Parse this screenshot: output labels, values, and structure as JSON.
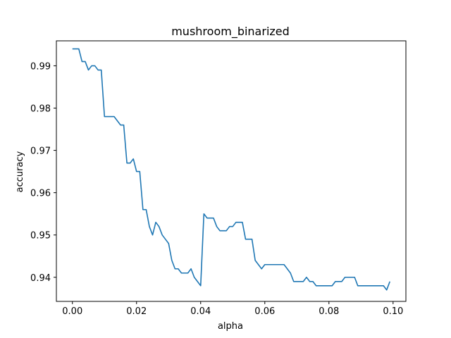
{
  "chart_data": {
    "type": "line",
    "title": "mushroom_binarized",
    "xlabel": "alpha",
    "ylabel": "accuracy",
    "xlim": [
      -0.005,
      0.104
    ],
    "ylim": [
      0.9343,
      0.9959
    ],
    "xticks": [
      0.0,
      0.02,
      0.04,
      0.06,
      0.08,
      0.1
    ],
    "xtick_labels": [
      "0.00",
      "0.02",
      "0.04",
      "0.06",
      "0.08",
      "0.10"
    ],
    "yticks": [
      0.94,
      0.95,
      0.96,
      0.97,
      0.98,
      0.99
    ],
    "ytick_labels": [
      "0.94",
      "0.95",
      "0.96",
      "0.97",
      "0.98",
      "0.99"
    ],
    "grid": false,
    "series": [
      {
        "color": "#1f77b4",
        "x": [
          0.0,
          0.001,
          0.002,
          0.003,
          0.004,
          0.005,
          0.006,
          0.007,
          0.008,
          0.009,
          0.01,
          0.011,
          0.012,
          0.013,
          0.014,
          0.015,
          0.016,
          0.017,
          0.018,
          0.019,
          0.02,
          0.021,
          0.022,
          0.023,
          0.024,
          0.025,
          0.026,
          0.027,
          0.028,
          0.029,
          0.03,
          0.031,
          0.032,
          0.033,
          0.034,
          0.035,
          0.036,
          0.037,
          0.038,
          0.039,
          0.04,
          0.041,
          0.042,
          0.043,
          0.044,
          0.045,
          0.046,
          0.047,
          0.048,
          0.049,
          0.05,
          0.051,
          0.052,
          0.053,
          0.054,
          0.055,
          0.056,
          0.057,
          0.058,
          0.059,
          0.06,
          0.061,
          0.062,
          0.063,
          0.064,
          0.065,
          0.066,
          0.067,
          0.068,
          0.069,
          0.07,
          0.071,
          0.072,
          0.073,
          0.074,
          0.075,
          0.076,
          0.077,
          0.078,
          0.079,
          0.08,
          0.081,
          0.082,
          0.083,
          0.084,
          0.085,
          0.086,
          0.087,
          0.088,
          0.089,
          0.09,
          0.091,
          0.092,
          0.093,
          0.094,
          0.095,
          0.096,
          0.097,
          0.098,
          0.099
        ],
        "values": [
          0.994,
          0.994,
          0.994,
          0.991,
          0.991,
          0.989,
          0.99,
          0.99,
          0.989,
          0.989,
          0.978,
          0.978,
          0.978,
          0.978,
          0.977,
          0.976,
          0.976,
          0.967,
          0.967,
          0.968,
          0.965,
          0.965,
          0.956,
          0.956,
          0.952,
          0.95,
          0.953,
          0.952,
          0.95,
          0.949,
          0.948,
          0.944,
          0.942,
          0.942,
          0.941,
          0.941,
          0.941,
          0.942,
          0.94,
          0.939,
          0.938,
          0.955,
          0.954,
          0.954,
          0.954,
          0.952,
          0.951,
          0.951,
          0.951,
          0.952,
          0.952,
          0.953,
          0.953,
          0.953,
          0.949,
          0.949,
          0.949,
          0.944,
          0.943,
          0.942,
          0.943,
          0.943,
          0.943,
          0.943,
          0.943,
          0.943,
          0.943,
          0.942,
          0.941,
          0.939,
          0.939,
          0.939,
          0.939,
          0.94,
          0.939,
          0.939,
          0.938,
          0.938,
          0.938,
          0.938,
          0.938,
          0.938,
          0.939,
          0.939,
          0.939,
          0.94,
          0.94,
          0.94,
          0.94,
          0.938,
          0.938,
          0.938,
          0.938,
          0.938,
          0.938,
          0.938,
          0.938,
          0.938,
          0.937,
          0.939
        ]
      }
    ]
  }
}
